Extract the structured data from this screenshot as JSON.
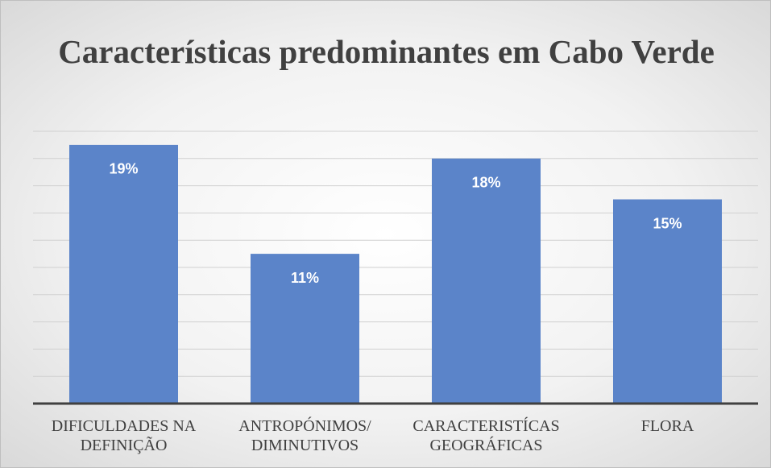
{
  "chart_data": {
    "type": "bar",
    "title": "Características predominantes em Cabo Verde",
    "categories": [
      "DIFICULDADES NA DEFINIÇÃO",
      "ANTROPÓNIMOS/ DIMINUTIVOS",
      "CARACTERISTÍCAS GEOGRÁFICAS",
      "FLORA"
    ],
    "values": [
      19,
      11,
      18,
      15
    ],
    "value_labels": [
      "19%",
      "11%",
      "18%",
      "15%"
    ],
    "color": "#5b84c9",
    "ylim": [
      0,
      20
    ],
    "yticks": [
      0,
      2,
      4,
      6,
      8,
      10,
      12,
      14,
      16,
      18,
      20
    ],
    "grid": true
  }
}
